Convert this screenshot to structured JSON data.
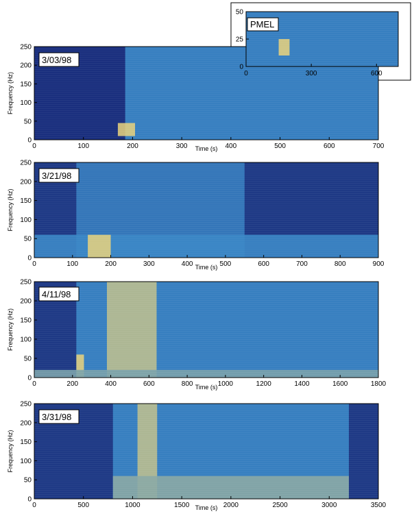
{
  "chart_data": [
    {
      "type": "heatmap",
      "date_label": "3/03/98",
      "xlabel": "Time (s)",
      "ylabel": "Frequency (Hz)",
      "xlim": [
        0,
        700
      ],
      "ylim": [
        0,
        250
      ],
      "x_ticks": [
        0,
        100,
        200,
        300,
        400,
        500,
        600,
        700
      ],
      "y_ticks": [
        0,
        50,
        100,
        150,
        200,
        250
      ],
      "features": [
        {
          "t0": 0,
          "t1": 185,
          "f0": 0,
          "f1": 250,
          "level": 0.0
        },
        {
          "t0": 185,
          "t1": 700,
          "f0": 0,
          "f1": 250,
          "level": 0.45
        },
        {
          "t0": 170,
          "t1": 205,
          "f0": 10,
          "f1": 45,
          "level": 1.0
        }
      ]
    },
    {
      "type": "heatmap",
      "date_label": "3/21/98",
      "xlabel": "Time (s)",
      "ylabel": "Frequency (Hz)",
      "xlim": [
        0,
        900
      ],
      "ylim": [
        0,
        250
      ],
      "x_ticks": [
        0,
        100,
        200,
        300,
        400,
        500,
        600,
        700,
        800,
        900
      ],
      "y_ticks": [
        0,
        50,
        100,
        150,
        200,
        250
      ],
      "features": [
        {
          "t0": 110,
          "t1": 550,
          "f0": 0,
          "f1": 250,
          "level": 0.4
        },
        {
          "t0": 0,
          "t1": 900,
          "f0": 0,
          "f1": 60,
          "level": 0.45
        },
        {
          "t0": 140,
          "t1": 200,
          "f0": 0,
          "f1": 60,
          "level": 1.0
        }
      ]
    },
    {
      "type": "heatmap",
      "date_label": "4/11/98",
      "xlabel": "Time (s)",
      "ylabel": "Frequency (Hz)",
      "xlim": [
        0,
        1800
      ],
      "ylim": [
        0,
        250
      ],
      "x_ticks": [
        0,
        200,
        400,
        600,
        800,
        1000,
        1200,
        1400,
        1600,
        1800
      ],
      "y_ticks": [
        0,
        50,
        100,
        150,
        200,
        250
      ],
      "features": [
        {
          "t0": 220,
          "t1": 1800,
          "f0": 0,
          "f1": 250,
          "level": 0.45
        },
        {
          "t0": 380,
          "t1": 640,
          "f0": 0,
          "f1": 250,
          "level": 0.85
        },
        {
          "t0": 220,
          "t1": 260,
          "f0": 0,
          "f1": 60,
          "level": 1.0
        },
        {
          "t0": 0,
          "t1": 1800,
          "f0": 0,
          "f1": 20,
          "level": 0.65
        }
      ]
    },
    {
      "type": "heatmap",
      "date_label": "3/31/98",
      "xlabel": "Time (s)",
      "ylabel": "Frequency (Hz)",
      "xlim": [
        0,
        3500
      ],
      "ylim": [
        0,
        250
      ],
      "x_ticks": [
        0,
        500,
        1000,
        1500,
        2000,
        2500,
        3000,
        3500
      ],
      "y_ticks": [
        0,
        50,
        100,
        150,
        200,
        250
      ],
      "features": [
        {
          "t0": 800,
          "t1": 3200,
          "f0": 0,
          "f1": 250,
          "level": 0.45
        },
        {
          "t0": 1050,
          "t1": 1250,
          "f0": 0,
          "f1": 250,
          "level": 0.85
        },
        {
          "t0": 800,
          "t1": 3200,
          "f0": 0,
          "f1": 60,
          "level": 0.7
        }
      ]
    },
    {
      "type": "heatmap",
      "date_label": "PMEL",
      "xlabel": "",
      "ylabel": "",
      "xlim": [
        0,
        700
      ],
      "ylim": [
        0,
        50
      ],
      "x_ticks": [
        0,
        300,
        600
      ],
      "y_ticks": [
        0,
        25,
        50
      ],
      "features": [
        {
          "t0": 0,
          "t1": 700,
          "f0": 0,
          "f1": 50,
          "level": 0.45
        },
        {
          "t0": 150,
          "t1": 200,
          "f0": 10,
          "f1": 25,
          "level": 1.0
        }
      ]
    }
  ],
  "colors": {
    "low": "#1a2f7d",
    "mid": "#3a87c7",
    "high": "#ead27a"
  }
}
